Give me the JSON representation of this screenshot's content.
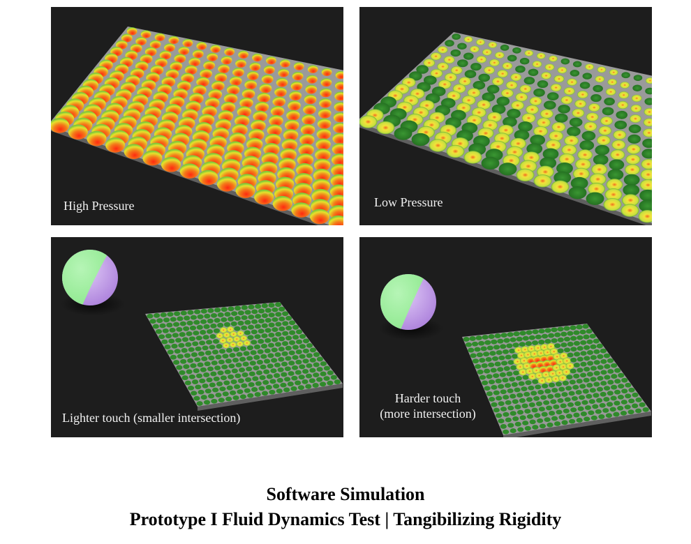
{
  "panels": [
    {
      "id": "high-pressure",
      "label": "High Pressure"
    },
    {
      "id": "low-pressure",
      "label": "Low Pressure"
    },
    {
      "id": "lighter-touch",
      "label": "Lighter touch (smaller intersection)"
    },
    {
      "id": "harder-touch",
      "label_line1": "Harder touch",
      "label_line2": "(more intersection)"
    }
  ],
  "caption": {
    "line1": "Software Simulation",
    "line2": "Prototype I Fluid Dynamics Test | Tangibilizing Rigidity"
  },
  "colors": {
    "panel_bg": "#1d1d1d",
    "plate": "#9a9a9a",
    "bump_hot": "#e8401c",
    "bump_warm": "#e8e030",
    "bump_cool": "#2f8a2a",
    "ball_green": "#8ee88e",
    "ball_purple": "#c9a3ee"
  }
}
